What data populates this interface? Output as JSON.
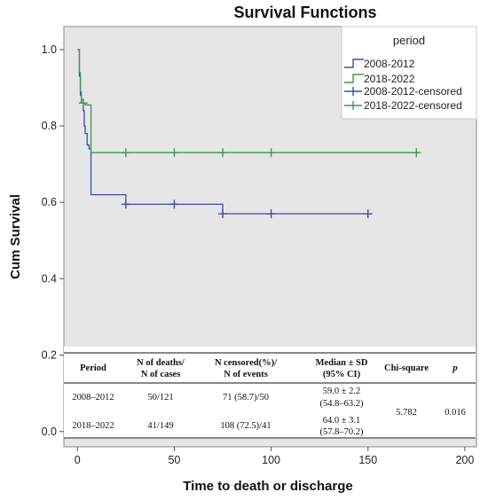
{
  "chart_data": {
    "type": "line",
    "subtype": "kaplan-meier-step",
    "title": "Survival Functions",
    "xlabel": "Time to death or discharge",
    "ylabel": "Cum Survival",
    "xlim": [
      -7,
      206
    ],
    "ylim": [
      -0.04,
      1.06
    ],
    "xticks": [
      0,
      50,
      100,
      150,
      200
    ],
    "yticks": [
      0.0,
      0.2,
      0.4,
      0.6,
      0.8,
      1.0
    ],
    "ytick_labels": [
      "0.0",
      "0.2",
      "0.4",
      "0.6",
      "0.8",
      "1.0"
    ],
    "background": "#e6e6e6",
    "legend": {
      "title": "period",
      "position": "top-right",
      "entries": [
        "2008-2012",
        "2018-2022",
        "2008-2012-censored",
        "2018-2022-censored"
      ]
    },
    "series": [
      {
        "name": "2008-2012",
        "color": "#3a4ea8",
        "steps": [
          [
            0,
            1.0
          ],
          [
            1,
            0.93
          ],
          [
            1.5,
            0.88
          ],
          [
            2,
            0.86
          ],
          [
            3,
            0.84
          ],
          [
            3.5,
            0.8
          ],
          [
            4,
            0.78
          ],
          [
            5,
            0.75
          ],
          [
            6,
            0.74
          ],
          [
            7,
            0.62
          ],
          [
            25,
            0.595
          ],
          [
            75,
            0.57
          ],
          [
            150,
            0.57
          ]
        ],
        "censored": [
          [
            25,
            0.595
          ],
          [
            50,
            0.595
          ],
          [
            75,
            0.57
          ],
          [
            100,
            0.57
          ],
          [
            150,
            0.57
          ]
        ]
      },
      {
        "name": "2018-2022",
        "color": "#3a9a4a",
        "steps": [
          [
            0,
            1.0
          ],
          [
            1,
            0.94
          ],
          [
            1.5,
            0.89
          ],
          [
            2,
            0.87
          ],
          [
            3,
            0.86
          ],
          [
            4,
            0.855
          ],
          [
            7,
            0.73
          ],
          [
            175,
            0.73
          ]
        ],
        "censored": [
          [
            3,
            0.86
          ],
          [
            25,
            0.73
          ],
          [
            50,
            0.73
          ],
          [
            75,
            0.73
          ],
          [
            100,
            0.73
          ],
          [
            175,
            0.73
          ]
        ]
      }
    ],
    "table": {
      "headers": [
        [
          "Period"
        ],
        [
          "N of deaths/",
          "N of cases"
        ],
        [
          "N censored(%)/",
          "N of events"
        ],
        [
          "Median ± SD",
          "(95% CI)"
        ],
        [
          "Chi-square"
        ],
        [
          "p"
        ]
      ],
      "rows": [
        {
          "period": "2008–2012",
          "deaths_cases": "50/121",
          "censored_events": "71 (58.7)/50",
          "median": "59.0 ± 2.2",
          "ci": "(54.8–63.2)"
        },
        {
          "period": "2018–2022",
          "deaths_cases": "41/149",
          "censored_events": "108 (72.5)/41",
          "median": "64.0 ± 3.1",
          "ci": "(57.8–70.2)"
        }
      ],
      "chi_square": "5.782",
      "p": "0.016"
    }
  }
}
